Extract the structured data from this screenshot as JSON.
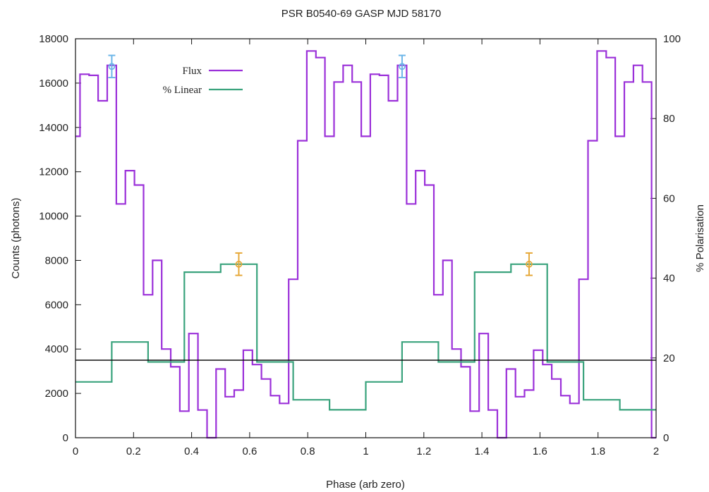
{
  "chart_data": {
    "type": "line",
    "title": "PSR B0540-69 GASP MJD 58170",
    "xlabel": "Phase (arb zero)",
    "ylabel": "Counts (photons)",
    "y2label": "% Polarisation",
    "xlim": [
      0,
      2
    ],
    "ylim": [
      0,
      18000
    ],
    "y2lim": [
      0,
      100
    ],
    "x_ticks": [
      "0",
      "0.2",
      "0.4",
      "0.6",
      "0.8",
      "1",
      "1.2",
      "1.4",
      "1.6",
      "1.8",
      "2"
    ],
    "y_ticks": [
      "0",
      "2000",
      "4000",
      "6000",
      "8000",
      "10000",
      "12000",
      "14000",
      "16000",
      "18000"
    ],
    "y2_ticks": [
      "0",
      "20",
      "40",
      "60",
      "80",
      "100"
    ],
    "legend_position": "top-left",
    "grid": false,
    "series": [
      {
        "name": "Flux",
        "axis": "left",
        "color": "#9b30d9",
        "style": "steps",
        "x": [
          0.0,
          0.0156,
          0.0469,
          0.0781,
          0.1094,
          0.1406,
          0.1719,
          0.2031,
          0.2344,
          0.2656,
          0.2969,
          0.3281,
          0.3594,
          0.3906,
          0.4219,
          0.4531,
          0.4844,
          0.5156,
          0.5469,
          0.5781,
          0.6094,
          0.6406,
          0.6719,
          0.7031,
          0.7344,
          0.7656,
          0.7969,
          0.8281,
          0.8594,
          0.8906,
          0.9219,
          0.9531,
          0.9844,
          1.0156,
          1.0469,
          1.0781,
          1.1094,
          1.1406,
          1.1719,
          1.2031,
          1.2344,
          1.2656,
          1.2969,
          1.3281,
          1.3594,
          1.3906,
          1.4219,
          1.4531,
          1.4844,
          1.5156,
          1.5469,
          1.5781,
          1.6094,
          1.6406,
          1.6719,
          1.7031,
          1.7344,
          1.7656,
          1.7969,
          1.8281,
          1.8594,
          1.8906,
          1.9219,
          1.9531,
          1.9844,
          2.0
        ],
        "values": [
          13600,
          16400,
          16350,
          15200,
          16800,
          10550,
          12050,
          11400,
          6450,
          8000,
          4000,
          3200,
          1200,
          4700,
          1250,
          0,
          3100,
          1850,
          2150,
          3950,
          3300,
          2650,
          1900,
          1550,
          7150,
          13400,
          17450,
          17150,
          13600,
          16050,
          16800,
          16050,
          13600,
          16400,
          16350,
          15200,
          16800,
          10550,
          12050,
          11400,
          6450,
          8000,
          4000,
          3200,
          1200,
          4700,
          1250,
          0,
          3100,
          1850,
          2150,
          3950,
          3300,
          2650,
          1900,
          1550,
          7150,
          13400,
          17450,
          17150,
          13600,
          16050,
          16800,
          16050,
          0,
          0
        ]
      },
      {
        "name": "% Linear",
        "axis": "right",
        "color": "#3aa37d",
        "style": "steps",
        "x": [
          0.0,
          0.125,
          0.25,
          0.375,
          0.5,
          0.625,
          0.75,
          0.875,
          1.0,
          1.125,
          1.25,
          1.375,
          1.5,
          1.625,
          1.75,
          1.875,
          2.0
        ],
        "values": [
          14,
          24,
          19,
          41.5,
          43.5,
          19,
          9.5,
          7,
          14,
          24,
          19,
          41.5,
          43.5,
          19,
          9.5,
          7,
          7
        ]
      }
    ],
    "reference_lines": [
      {
        "axis": "left",
        "y": 3500,
        "color": "#111111"
      }
    ],
    "error_bars": [
      {
        "axis": "left",
        "x": 0.125,
        "y": 16750,
        "err": 500,
        "color": "#6cb6e8"
      },
      {
        "axis": "left",
        "x": 1.125,
        "y": 16750,
        "err": 500,
        "color": "#6cb6e8"
      },
      {
        "axis": "right",
        "x": 0.5625,
        "y": 43.5,
        "err": 2.8,
        "color": "#e6a93a"
      },
      {
        "axis": "right",
        "x": 1.5625,
        "y": 43.5,
        "err": 2.8,
        "color": "#e6a93a"
      }
    ]
  }
}
